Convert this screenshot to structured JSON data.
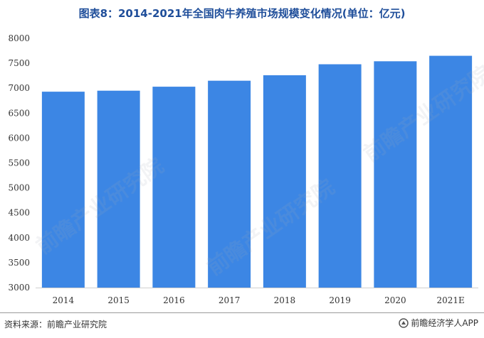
{
  "header": {
    "title": "图表8：2014-2021年全国肉牛养殖市场规模变化情况(单位：亿元)"
  },
  "footer": {
    "source": "资料来源：前瞻产业研究院",
    "brand": "前瞻经济学人APP"
  },
  "watermark": {
    "text": "前瞻产业研究院"
  },
  "chart_data": {
    "type": "bar",
    "title": "图表8：2014-2021年全国肉牛养殖市场规模变化情况(单位：亿元)",
    "categories": [
      "2014",
      "2015",
      "2016",
      "2017",
      "2018",
      "2019",
      "2020",
      "2021E"
    ],
    "values": [
      6930,
      6950,
      7030,
      7150,
      7260,
      7480,
      7540,
      7650
    ],
    "ylim": [
      3000,
      8000
    ],
    "yticks": [
      3000,
      3500,
      4000,
      4500,
      5000,
      5500,
      6000,
      6500,
      7000,
      7500,
      8000
    ],
    "xlabel": "",
    "ylabel": "",
    "bar_color": "#3c86e4",
    "grid": false,
    "legend": "none"
  }
}
